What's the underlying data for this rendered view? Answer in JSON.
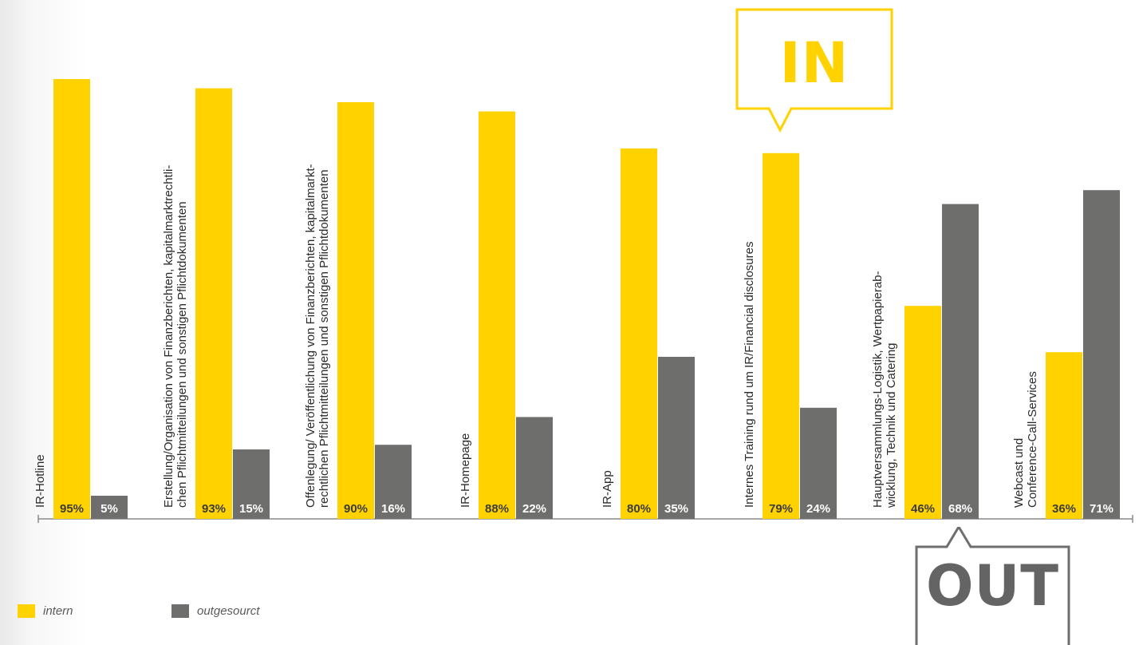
{
  "colors": {
    "intern": "#ffd200",
    "outgesourct": "#6e6e6d",
    "value_text": "#3c3c3c",
    "axis": "#8a8a8a",
    "category_text": "#2b2b2b"
  },
  "legend": {
    "intern_label": "intern",
    "outgesourct_label": "outgesourct"
  },
  "callouts": {
    "in_label": "IN",
    "out_label": "OUT"
  },
  "chart_data": {
    "type": "bar",
    "title": "",
    "xlabel": "",
    "ylabel": "",
    "ylim": [
      0,
      100
    ],
    "grid": false,
    "legend_position": "bottom-left",
    "categories": [
      [
        "IR-Hotline"
      ],
      [
        "Erstellung/Organisation von Finanzberichten, kapitalmarktrechtli-",
        "chen Pflichtmitteilungen und sonstigen Pflichtdokumenten"
      ],
      [
        "Offenlegung/ Veröffentlichung von Finanzberichten, kapitalmarkt-",
        "rechtlichen Pflichtmitteilungen und sonstigen Pflichtdokumenten"
      ],
      [
        "IR-Homepage"
      ],
      [
        "IR-App"
      ],
      [
        "Internes Training rund um IR/Financial disclosures"
      ],
      [
        "Hauptversammlungs-Logistik, Wertpapierab-",
        "wicklung, Technik und Catering"
      ],
      [
        "Webcast und",
        "Conference-Call-Services"
      ]
    ],
    "series": [
      {
        "name": "intern",
        "values": [
          95,
          93,
          90,
          88,
          80,
          79,
          46,
          36
        ],
        "labels": [
          "95%",
          "93%",
          "90%",
          "88%",
          "80%",
          "79%",
          "46%",
          "36%"
        ]
      },
      {
        "name": "outgesourct",
        "values": [
          5,
          15,
          16,
          22,
          35,
          24,
          68,
          71
        ],
        "labels": [
          "5%",
          "15%",
          "16%",
          "22%",
          "35%",
          "24%",
          "68%",
          "71%"
        ]
      }
    ]
  }
}
